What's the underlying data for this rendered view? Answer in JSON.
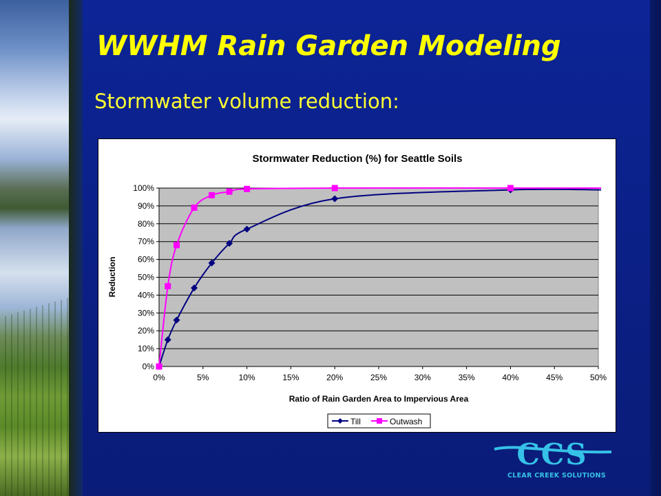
{
  "slide": {
    "title": "WWHM Rain Garden Modeling",
    "subtitle": "Stormwater volume reduction:",
    "logo_text": "CCS",
    "logo_caption": "CLEAR CREEK SOLUTIONS"
  },
  "colors": {
    "background": "#0b2088",
    "title": "#ffff00",
    "plot_area": "#c0c0c0",
    "till": "#000080",
    "outwash": "#ff00ff",
    "logo": "#36c2e8"
  },
  "chart_data": {
    "type": "line",
    "title": "Stormwater Reduction (%) for Seattle Soils",
    "xlabel": "Ratio of Rain Garden Area to Impervious Area",
    "ylabel": "Reduction",
    "xlim": [
      0,
      0.5
    ],
    "ylim": [
      0,
      1
    ],
    "x_ticks": [
      "0%",
      "5%",
      "10%",
      "15%",
      "20%",
      "25%",
      "30%",
      "35%",
      "40%",
      "45%",
      "50%"
    ],
    "y_ticks": [
      "0%",
      "10%",
      "20%",
      "30%",
      "40%",
      "50%",
      "60%",
      "70%",
      "80%",
      "90%",
      "100%"
    ],
    "grid": "horizontal",
    "legend_position": "bottom",
    "series": [
      {
        "name": "Till",
        "marker": "diamond",
        "color": "#000080",
        "x": [
          0,
          0.01,
          0.02,
          0.04,
          0.06,
          0.08,
          0.1,
          0.2,
          0.4
        ],
        "y": [
          0,
          0.15,
          0.26,
          0.44,
          0.58,
          0.69,
          0.77,
          0.94,
          0.99
        ],
        "line_end": [
          0.5,
          0.99
        ]
      },
      {
        "name": "Outwash",
        "marker": "square",
        "color": "#ff00ff",
        "x": [
          0,
          0.01,
          0.02,
          0.04,
          0.06,
          0.08,
          0.1,
          0.2,
          0.4
        ],
        "y": [
          0,
          0.45,
          0.68,
          0.89,
          0.96,
          0.98,
          0.995,
          1.0,
          1.0
        ],
        "line_end": [
          0.5,
          1.0
        ]
      }
    ]
  }
}
